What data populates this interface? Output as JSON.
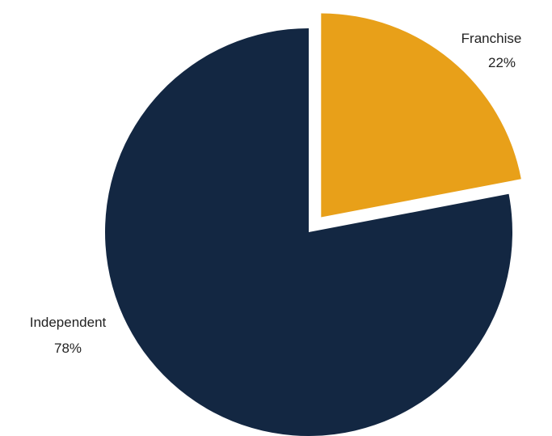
{
  "chart_data": {
    "type": "pie",
    "slices": [
      {
        "label": "Franchise",
        "value": 22,
        "value_label": "22%",
        "color": "#E8A019",
        "exploded": true
      },
      {
        "label": "Independent",
        "value": 78,
        "value_label": "78%",
        "color": "#132742",
        "exploded": false
      }
    ],
    "start_angle": "12 o'clock",
    "direction": "clockwise",
    "legend": "none",
    "labels": "outside slices, category name above percentage"
  }
}
